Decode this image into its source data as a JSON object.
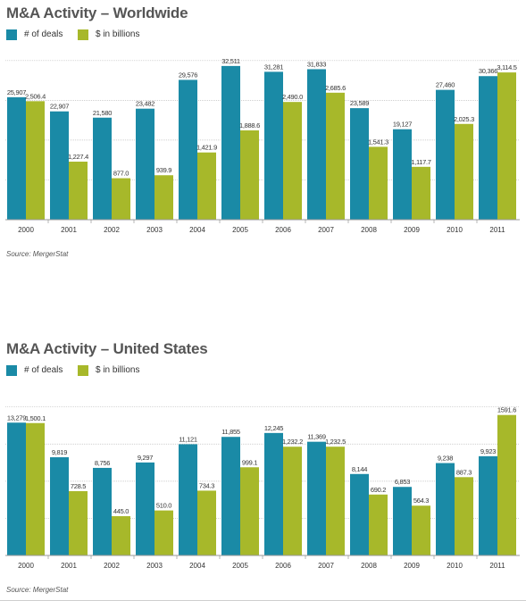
{
  "colors": {
    "deals": "#1a8aa6",
    "dollars": "#a7b82a",
    "grid": "#bfbfbf",
    "axis": "#999999"
  },
  "chart_data": [
    {
      "type": "bar",
      "title": "M&A Activity – Worldwide",
      "categories": [
        "2000",
        "2001",
        "2002",
        "2003",
        "2004",
        "2005",
        "2006",
        "2007",
        "2008",
        "2009",
        "2010",
        "2011"
      ],
      "series": [
        {
          "name": "# of deals",
          "values": [
            25907,
            22907,
            21580,
            23482,
            29576,
            32511,
            31281,
            31833,
            23589,
            19127,
            27460,
            30366
          ],
          "labels": [
            "25,907",
            "22,907",
            "21,580",
            "23,482",
            "29,576",
            "32,511",
            "31,281",
            "31,833",
            "23,589",
            "19,127",
            "27,460",
            "30,366"
          ]
        },
        {
          "name": "$ in billions",
          "values": [
            2506.4,
            1227.4,
            877.0,
            939.9,
            1421.9,
            1888.6,
            2490.0,
            2685.6,
            1541.3,
            1117.7,
            2025.3,
            3114.5
          ],
          "labels": [
            "2,506.4",
            "1,227.4",
            "877.0",
            "939.9",
            "1,421.9",
            "1,888.6",
            "2,490.0",
            "2,685.6",
            "1,541.3",
            "1,117.7",
            "2,025.3",
            "3,114.5"
          ]
        }
      ],
      "source": "Source: MergerStat",
      "legend": "top-left",
      "grid": true
    },
    {
      "type": "bar",
      "title": "M&A Activity – United States",
      "categories": [
        "2000",
        "2001",
        "2002",
        "2003",
        "2004",
        "2005",
        "2006",
        "2007",
        "2008",
        "2009",
        "2010",
        "2011"
      ],
      "series": [
        {
          "name": "# of deals",
          "values": [
            13279,
            9819,
            8756,
            9297,
            11121,
            11855,
            12245,
            11369,
            8144,
            6853,
            9238,
            9923
          ],
          "labels": [
            "13,279",
            "9,819",
            "8,756",
            "9,297",
            "11,121",
            "11,855",
            "12,245",
            "11,369",
            "8,144",
            "6,853",
            "9,238",
            "9,923"
          ]
        },
        {
          "name": "$ in billions",
          "values": [
            1500.1,
            728.5,
            445.0,
            510.0,
            734.3,
            999.1,
            1232.2,
            1232.5,
            690.2,
            564.3,
            887.3,
            1591.6
          ],
          "labels": [
            "1,500.1",
            "728.5",
            "445.0",
            "510.0",
            "734.3",
            "999.1",
            "1,232.2",
            "1,232.5",
            "690.2",
            "564.3",
            "887.3",
            "1591.6"
          ]
        }
      ],
      "source": "Source: MergerStat",
      "legend": "top-left",
      "grid": true
    }
  ]
}
